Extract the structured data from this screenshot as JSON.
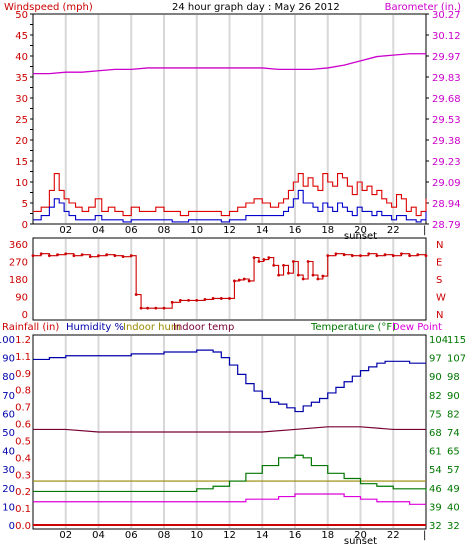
{
  "header": {
    "windspeed_label": "Windspeed (mph)",
    "title": "24 hour graph day : May 26 2012",
    "barometer_label": "Barometer (in.)"
  },
  "bottom_header": {
    "rainfall_label": "Rainfall (in)",
    "humidity_label": "Humidity %",
    "indoor_hum_label": "Indoor hum",
    "indoor_temp_label": "Indoor temp",
    "temperature_label": "Temperature (°F)",
    "dewpoint_label": "Dew Point"
  },
  "x_axis": {
    "hour_ticks": [
      "02",
      "04",
      "06",
      "08",
      "10",
      "12",
      "14",
      "16",
      "18",
      "20",
      "22"
    ],
    "sunset_label": "sunset"
  },
  "colors": {
    "windspeed_axis": "#cc0000",
    "barometer_axis": "#cc00cc",
    "wind_gust": "#dd0000",
    "wind_avg": "#0000cc",
    "barometer": "#cc00cc",
    "direction": "#cc0000",
    "humidity": "#0000aa",
    "indoor_hum": "#998800",
    "indoor_temp": "#770033",
    "temperature": "#007700",
    "dewpoint": "#dd00dd",
    "rain": "#cc0000"
  },
  "chart_data": [
    {
      "type": "line",
      "name": "wind-barometer",
      "xlim": [
        0,
        24
      ],
      "y_left": {
        "label": "Windspeed (mph)",
        "ticks": [
          "0",
          "2.5",
          "5",
          "7.5",
          "10",
          "12.5",
          "15",
          "17.5",
          "20",
          "22.5",
          "25",
          "27.5",
          "30",
          "32.5",
          "35",
          "37.5",
          "40",
          "42.5",
          "45",
          "47.5",
          "50"
        ],
        "labeled": [
          "0",
          "5",
          "10",
          "15",
          "20",
          "25",
          "30",
          "35",
          "40",
          "45",
          "50"
        ],
        "range": [
          0,
          50
        ]
      },
      "y_right": {
        "label": "Barometer (in.)",
        "ticks": [
          "28.79",
          "28.94",
          "29.09",
          "29.23",
          "29.38",
          "29.53",
          "29.68",
          "29.83",
          "29.97",
          "30.12",
          "30.27"
        ],
        "range": [
          28.79,
          30.27
        ]
      },
      "series": [
        {
          "name": "wind-gust",
          "x": [
            0,
            0.5,
            1,
            1.3,
            1.6,
            1.9,
            2.2,
            2.6,
            3,
            3.4,
            3.8,
            4.2,
            4.6,
            5,
            5.5,
            6,
            6.5,
            7,
            7.5,
            8,
            8.5,
            9,
            9.5,
            10,
            10.5,
            11,
            11.5,
            12,
            12.5,
            13,
            13.5,
            14,
            14.5,
            15,
            15.3,
            15.6,
            15.9,
            16.2,
            16.5,
            16.8,
            17.1,
            17.4,
            17.7,
            18,
            18.3,
            18.6,
            18.9,
            19.2,
            19.5,
            19.8,
            20.1,
            20.4,
            20.7,
            21,
            21.3,
            21.6,
            21.9,
            22.2,
            22.5,
            22.8,
            23.1,
            23.4,
            23.7,
            24
          ],
          "values": [
            3,
            4,
            8,
            12,
            8,
            6,
            5,
            4,
            3,
            4,
            6,
            3,
            4,
            3,
            2,
            4,
            3,
            3,
            4,
            3,
            3,
            2,
            3,
            3,
            3,
            3,
            2,
            3,
            4,
            5,
            6,
            5,
            4,
            5,
            6,
            8,
            10,
            12,
            9,
            11,
            9,
            8,
            12,
            10,
            9,
            12,
            11,
            9,
            7,
            10,
            8,
            9,
            7,
            8,
            6,
            5,
            4,
            7,
            6,
            3,
            4,
            2,
            3,
            6
          ]
        },
        {
          "name": "wind-avg",
          "x": [
            0,
            0.5,
            1,
            1.3,
            1.6,
            1.9,
            2.2,
            2.6,
            3,
            3.4,
            3.8,
            4.2,
            4.6,
            5,
            5.5,
            6,
            6.5,
            7,
            7.5,
            8,
            8.5,
            9,
            9.5,
            10,
            10.5,
            11,
            11.5,
            12,
            12.5,
            13,
            13.5,
            14,
            14.5,
            15,
            15.3,
            15.6,
            15.9,
            16.2,
            16.5,
            16.8,
            17.1,
            17.4,
            17.7,
            18,
            18.3,
            18.6,
            18.9,
            19.2,
            19.5,
            19.8,
            20.1,
            20.4,
            20.7,
            21,
            21.3,
            21.6,
            21.9,
            22.2,
            22.5,
            22.8,
            23.1,
            23.4,
            23.7,
            24
          ],
          "values": [
            1,
            2,
            4,
            6,
            5,
            3,
            2,
            1,
            1,
            1,
            2,
            1,
            1,
            1,
            0.5,
            1,
            1,
            1,
            1,
            1,
            0.5,
            0.5,
            1,
            1,
            1,
            1,
            0.5,
            1,
            1,
            2,
            2,
            2,
            2,
            2,
            3,
            4,
            6,
            8,
            5,
            5,
            4,
            3,
            5,
            4,
            3,
            5,
            4,
            3,
            2,
            4,
            3,
            3,
            2,
            3,
            2,
            2,
            1,
            2,
            2,
            1,
            1,
            0.5,
            1,
            3
          ]
        },
        {
          "name": "barometer",
          "x": [
            0,
            1,
            2,
            3,
            4,
            5,
            6,
            7,
            8,
            9,
            10,
            11,
            12,
            13,
            14,
            15,
            16,
            17,
            18,
            19,
            20,
            21,
            22,
            23,
            24
          ],
          "values": [
            29.85,
            29.85,
            29.86,
            29.86,
            29.87,
            29.88,
            29.88,
            29.89,
            29.89,
            29.89,
            29.89,
            29.89,
            29.89,
            29.89,
            29.89,
            29.88,
            29.88,
            29.88,
            29.89,
            29.91,
            29.94,
            29.97,
            29.98,
            29.99,
            29.99
          ]
        }
      ]
    },
    {
      "type": "scatter",
      "name": "wind-direction",
      "xlim": [
        0,
        24
      ],
      "y_left": {
        "ticks": [
          "0",
          "90",
          "180",
          "270",
          "360"
        ],
        "range": [
          0,
          360
        ]
      },
      "y_right": {
        "ticks": [
          "N",
          "W",
          "S",
          "E",
          "N"
        ]
      },
      "series": [
        {
          "name": "direction",
          "x": [
            0,
            0.5,
            1,
            1.5,
            2,
            2.5,
            3,
            3.5,
            4,
            4.5,
            5,
            5.5,
            6,
            6.3,
            6.6,
            7,
            7.5,
            8,
            8.5,
            9,
            9.5,
            10,
            10.5,
            11,
            11.5,
            12,
            12.3,
            12.6,
            12.9,
            13.2,
            13.5,
            13.8,
            14.1,
            14.4,
            14.7,
            15,
            15.3,
            15.6,
            15.9,
            16.2,
            16.5,
            16.8,
            17.1,
            17.4,
            17.7,
            18,
            18.5,
            19,
            19.5,
            20,
            20.5,
            21,
            21.5,
            22,
            22.5,
            23,
            23.5,
            24
          ],
          "values": [
            300,
            310,
            300,
            305,
            310,
            300,
            305,
            295,
            300,
            305,
            300,
            295,
            300,
            100,
            30,
            30,
            30,
            30,
            60,
            70,
            70,
            70,
            75,
            80,
            80,
            80,
            170,
            175,
            180,
            170,
            290,
            270,
            280,
            290,
            250,
            200,
            250,
            210,
            270,
            200,
            180,
            270,
            200,
            180,
            195,
            300,
            310,
            305,
            300,
            300,
            310,
            300,
            305,
            300,
            310,
            300,
            305,
            300
          ]
        }
      ]
    },
    {
      "type": "line",
      "name": "humidity-temperature",
      "xlim": [
        0,
        24
      ],
      "y_left_outer": {
        "label": "Rainfall (in)",
        "ticks": [
          "0.0",
          "0.1",
          "0.2",
          "0.3",
          "0.4",
          "0.5",
          "0.6",
          "0.7",
          "0.8",
          "0.9",
          "1.1",
          "1.2"
        ]
      },
      "y_left_inner": {
        "label": "Humidity %",
        "ticks": [
          "0",
          "10",
          "20",
          "30",
          "40",
          "50",
          "60",
          "70",
          "80",
          "90",
          "100"
        ],
        "range": [
          0,
          100
        ]
      },
      "y_right_inner": {
        "label": "Temperature (°F)",
        "ticks": [
          "32",
          "39",
          "46",
          "54",
          "61",
          "68",
          "75",
          "82",
          "90",
          "97",
          "104"
        ],
        "range": [
          32,
          104
        ]
      },
      "y_right_outer": {
        "ticks": [
          "32",
          "40",
          "49",
          "57",
          "65",
          "74",
          "82",
          "90",
          "98",
          "107",
          "115"
        ]
      },
      "series": [
        {
          "name": "humidity",
          "x": [
            0,
            1,
            2,
            3,
            4,
            5,
            6,
            7,
            8,
            9,
            10,
            11,
            11.5,
            12,
            12.5,
            13,
            13.5,
            14,
            14.5,
            15,
            15.5,
            16,
            16.5,
            17,
            17.5,
            18,
            18.5,
            19,
            19.5,
            20,
            20.5,
            21,
            21.5,
            22,
            22.5,
            23,
            24
          ],
          "values": [
            89,
            90,
            91,
            91,
            91,
            91,
            92,
            92,
            93,
            93,
            94,
            93,
            90,
            86,
            81,
            76,
            72,
            68,
            66,
            65,
            63,
            61,
            64,
            66,
            68,
            71,
            74,
            77,
            80,
            83,
            85,
            87,
            88,
            88,
            88,
            87,
            87
          ]
        },
        {
          "name": "indoor-hum",
          "x": [
            0,
            24
          ],
          "values": [
            49,
            49
          ]
        },
        {
          "name": "indoor-temp",
          "x": [
            0,
            2,
            4,
            6,
            8,
            10,
            12,
            14,
            16,
            18,
            20,
            22,
            24
          ],
          "values": [
            69,
            69,
            68,
            68,
            68,
            68,
            68,
            68,
            69,
            70,
            70,
            69,
            69
          ]
        },
        {
          "name": "temperature",
          "x": [
            0,
            2,
            4,
            6,
            8,
            10,
            11,
            12,
            13,
            14,
            15,
            16,
            16.5,
            17,
            18,
            19,
            20,
            21,
            22,
            23,
            24
          ],
          "values": [
            45,
            45,
            45,
            45,
            45,
            46,
            47,
            49,
            52,
            55,
            58,
            59,
            58,
            55,
            52,
            50,
            48,
            47,
            46,
            46,
            45
          ]
        },
        {
          "name": "dewpoint",
          "x": [
            0,
            2,
            4,
            6,
            8,
            10,
            12,
            13,
            14,
            15,
            16,
            17,
            18,
            19,
            20,
            21,
            22,
            23,
            24
          ],
          "values": [
            41,
            41,
            41,
            41,
            41,
            41,
            41,
            42,
            42,
            43,
            44,
            44,
            44,
            43,
            42,
            41,
            41,
            40,
            40
          ]
        },
        {
          "name": "rain",
          "x": [
            0,
            24
          ],
          "values": [
            0,
            0
          ]
        }
      ]
    }
  ]
}
